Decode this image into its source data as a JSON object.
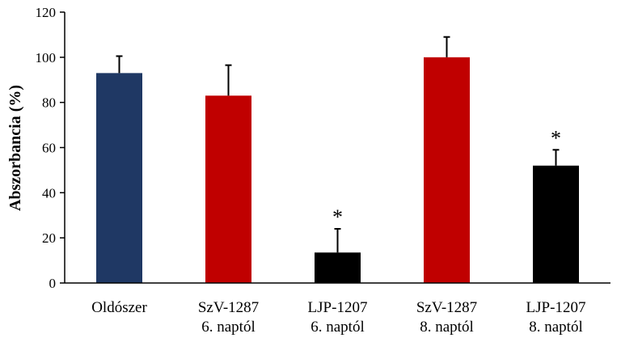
{
  "chart_data": {
    "type": "bar",
    "title": "",
    "xlabel": "",
    "ylabel": "Abszorbancia (%)",
    "ylim": [
      0,
      120
    ],
    "yticks": [
      0,
      20,
      40,
      60,
      80,
      100,
      120
    ],
    "grid": false,
    "categories": [
      [
        "Oldószer"
      ],
      [
        "SzV-1287",
        "6. naptól"
      ],
      [
        "LJP-1207",
        "6. naptól"
      ],
      [
        "SzV-1287",
        "8. naptól"
      ],
      [
        "LJP-1207",
        "8. naptól"
      ]
    ],
    "values": [
      93,
      83,
      13.5,
      100,
      52
    ],
    "errors": [
      7.5,
      13.5,
      10.5,
      9,
      7
    ],
    "colors": [
      "#1f3864",
      "#c00000",
      "#000000",
      "#c00000",
      "#000000"
    ],
    "significance": [
      "",
      "",
      "*",
      "",
      "*"
    ]
  }
}
